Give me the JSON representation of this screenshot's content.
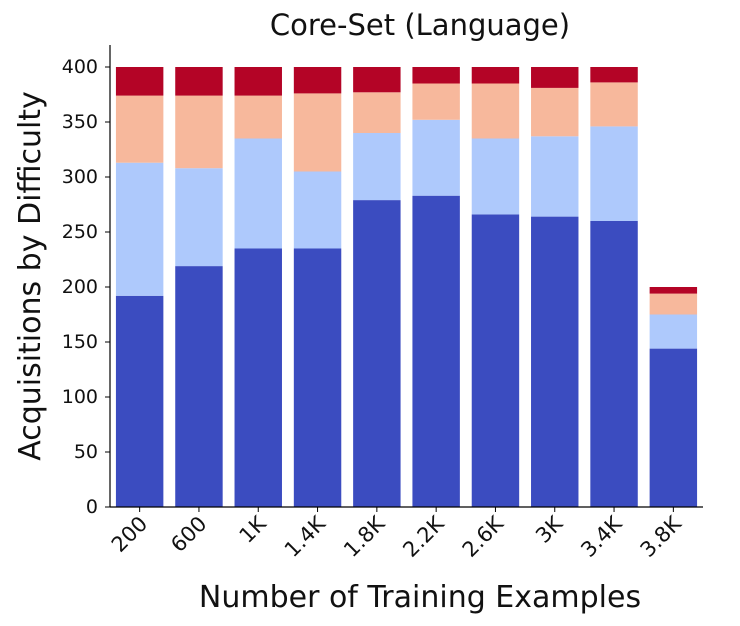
{
  "chart_data": {
    "type": "bar",
    "stacked": true,
    "title": "Core-Set (Language)",
    "xlabel": "Number of Training Examples",
    "ylabel": "Acquisitions by Difficulty",
    "categories": [
      "200",
      "600",
      "1K",
      "1.4K",
      "1.8K",
      "2.2K",
      "2.6K",
      "3K",
      "3.4K",
      "3.8K"
    ],
    "ylim": [
      0,
      420
    ],
    "yticks": [
      0,
      50,
      100,
      150,
      200,
      250,
      300,
      350,
      400
    ],
    "grid": false,
    "legend": "none",
    "series": [
      {
        "color": "#3b4cc0",
        "values": [
          192,
          219,
          235,
          235,
          279,
          283,
          266,
          264,
          260,
          144
        ]
      },
      {
        "color": "#aec9fc",
        "values": [
          121,
          89,
          100,
          70,
          61,
          69,
          69,
          73,
          86,
          31
        ]
      },
      {
        "color": "#f7b89c",
        "values": [
          61,
          66,
          39,
          71,
          37,
          33,
          50,
          44,
          40,
          19
        ]
      },
      {
        "color": "#b40426",
        "values": [
          26,
          26,
          26,
          24,
          23,
          15,
          15,
          19,
          14,
          6
        ]
      }
    ]
  }
}
